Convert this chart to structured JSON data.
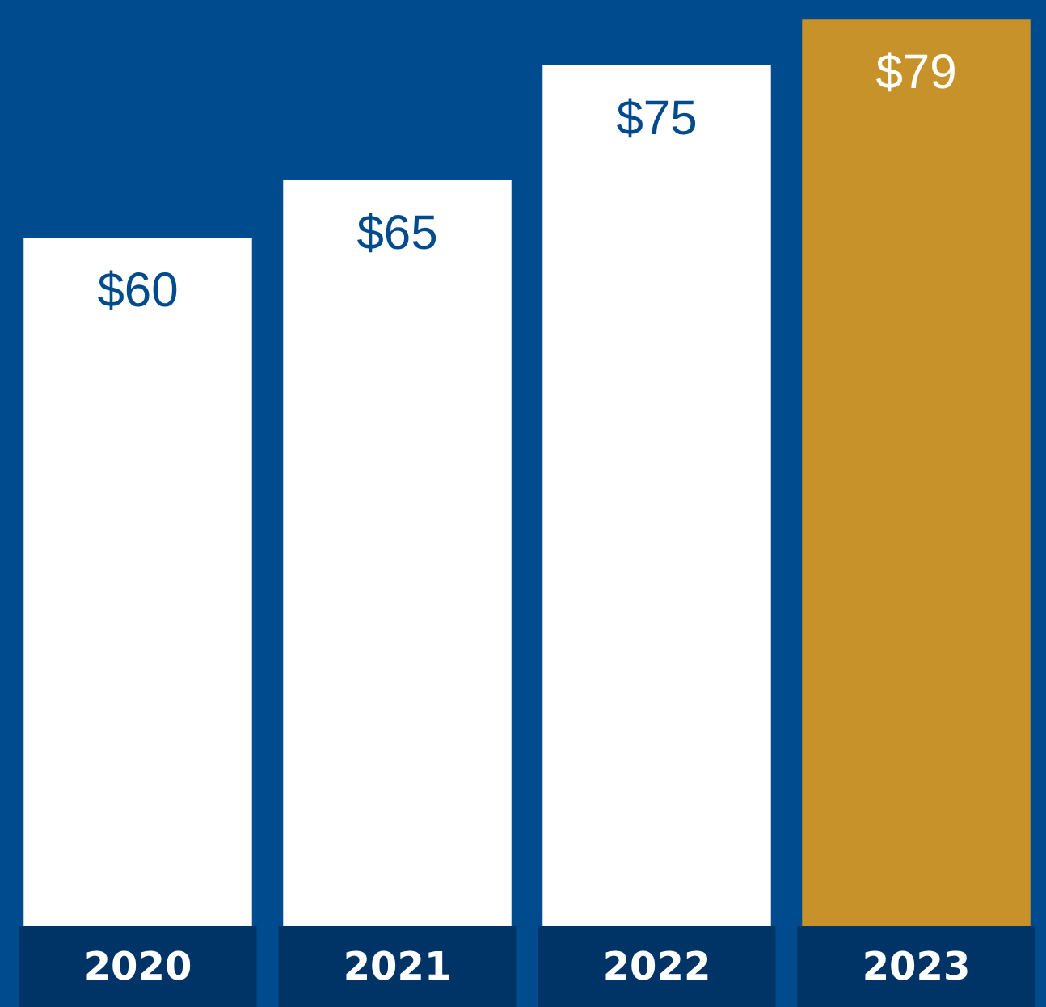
{
  "chart_data": {
    "type": "bar",
    "categories": [
      "2020",
      "2021",
      "2022",
      "2023"
    ],
    "values": [
      60,
      65,
      75,
      79
    ],
    "colors": [
      "#ffffff",
      "#ffffff",
      "#ffffff",
      "#c8922a"
    ],
    "value_labels": [
      "$60",
      "$65",
      "$75",
      "$79"
    ]
  }
}
